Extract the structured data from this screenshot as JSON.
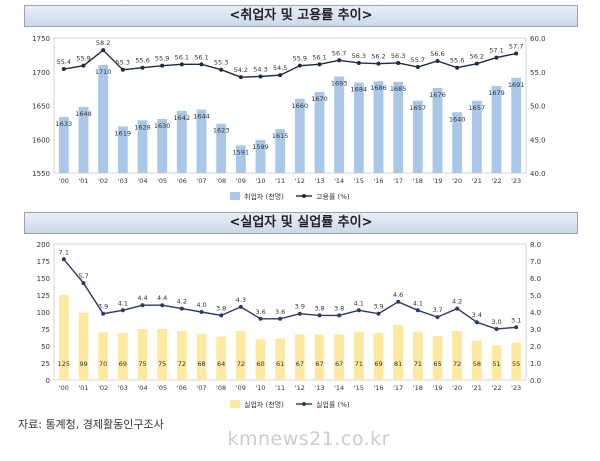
{
  "chart_data": [
    {
      "type": "bar+line",
      "title": "<취업자 및 고용률 추이>",
      "categories": [
        "'00",
        "'01",
        "'02",
        "'03",
        "'04",
        "'05",
        "'06",
        "'07",
        "'08",
        "'09",
        "'10",
        "'11",
        "'12",
        "'13",
        "'14",
        "'15",
        "'16",
        "'17",
        "'18",
        "'19",
        "'20",
        "'21",
        "'22",
        "'23"
      ],
      "series": [
        {
          "name": "취업자 (천명)",
          "axis": "left",
          "type": "bar",
          "color": "#a9c7e6",
          "values": [
            1633,
            1648,
            1710,
            1619,
            1628,
            1630,
            1642,
            1644,
            1623,
            1591,
            1599,
            1615,
            1660,
            1670,
            1693,
            1684,
            1686,
            1685,
            1657,
            1676,
            1640,
            1657,
            1679,
            1691
          ]
        },
        {
          "name": "고용률 (%)",
          "axis": "right",
          "type": "line",
          "color": "#1f2a44",
          "values": [
            55.4,
            55.9,
            58.2,
            55.3,
            55.6,
            55.9,
            56.1,
            56.1,
            55.3,
            54.2,
            54.3,
            54.5,
            55.9,
            56.1,
            56.7,
            56.3,
            56.2,
            56.3,
            55.7,
            56.6,
            55.6,
            56.2,
            57.1,
            57.7
          ]
        }
      ],
      "left_axis": {
        "ylim": [
          1550,
          1750
        ],
        "ticks": [
          1550,
          1600,
          1650,
          1700,
          1750
        ]
      },
      "right_axis": {
        "ylim": [
          40,
          60
        ],
        "ticks": [
          "40.0",
          "45.0",
          "50.0",
          "55.0",
          "60.0"
        ]
      },
      "legend": "bottom"
    },
    {
      "type": "bar+line",
      "title": "<실업자 및 실업률 추이>",
      "categories": [
        "'00",
        "'01",
        "'02",
        "'03",
        "'04",
        "'05",
        "'06",
        "'07",
        "'08",
        "'09",
        "'10",
        "'11",
        "'12",
        "'13",
        "'14",
        "'15",
        "'16",
        "'17",
        "'18",
        "'19",
        "'20",
        "'21",
        "'22",
        "'23"
      ],
      "series": [
        {
          "name": "실업자 (천명)",
          "axis": "left",
          "type": "bar",
          "color": "#fde9a1",
          "values": [
            125,
            99,
            70,
            69,
            75,
            75,
            72,
            68,
            64,
            72,
            60,
            61,
            67,
            67,
            67,
            71,
            69,
            81,
            71,
            65,
            72,
            58,
            51,
            55
          ]
        },
        {
          "name": "실업률 (%)",
          "axis": "right",
          "type": "line",
          "color": "#2b3a67",
          "values": [
            7.1,
            5.7,
            3.9,
            4.1,
            4.4,
            4.4,
            4.2,
            4.0,
            3.8,
            4.3,
            3.6,
            3.6,
            3.9,
            3.8,
            3.8,
            4.1,
            3.9,
            4.6,
            4.1,
            3.7,
            4.2,
            3.4,
            3.0,
            3.1
          ]
        }
      ],
      "left_axis": {
        "ylim": [
          0,
          200
        ],
        "ticks": [
          0,
          25,
          50,
          75,
          100,
          125,
          150,
          175,
          200
        ]
      },
      "right_axis": {
        "ylim": [
          0,
          8
        ],
        "ticks": [
          "0.0",
          "1.0",
          "2.0",
          "3.0",
          "4.0",
          "5.0",
          "6.0",
          "7.0",
          "8.0"
        ]
      },
      "legend": "bottom"
    }
  ],
  "source": "자료: 통계청, 경제활동인구조사",
  "watermark": "kmnews21.co.kr"
}
